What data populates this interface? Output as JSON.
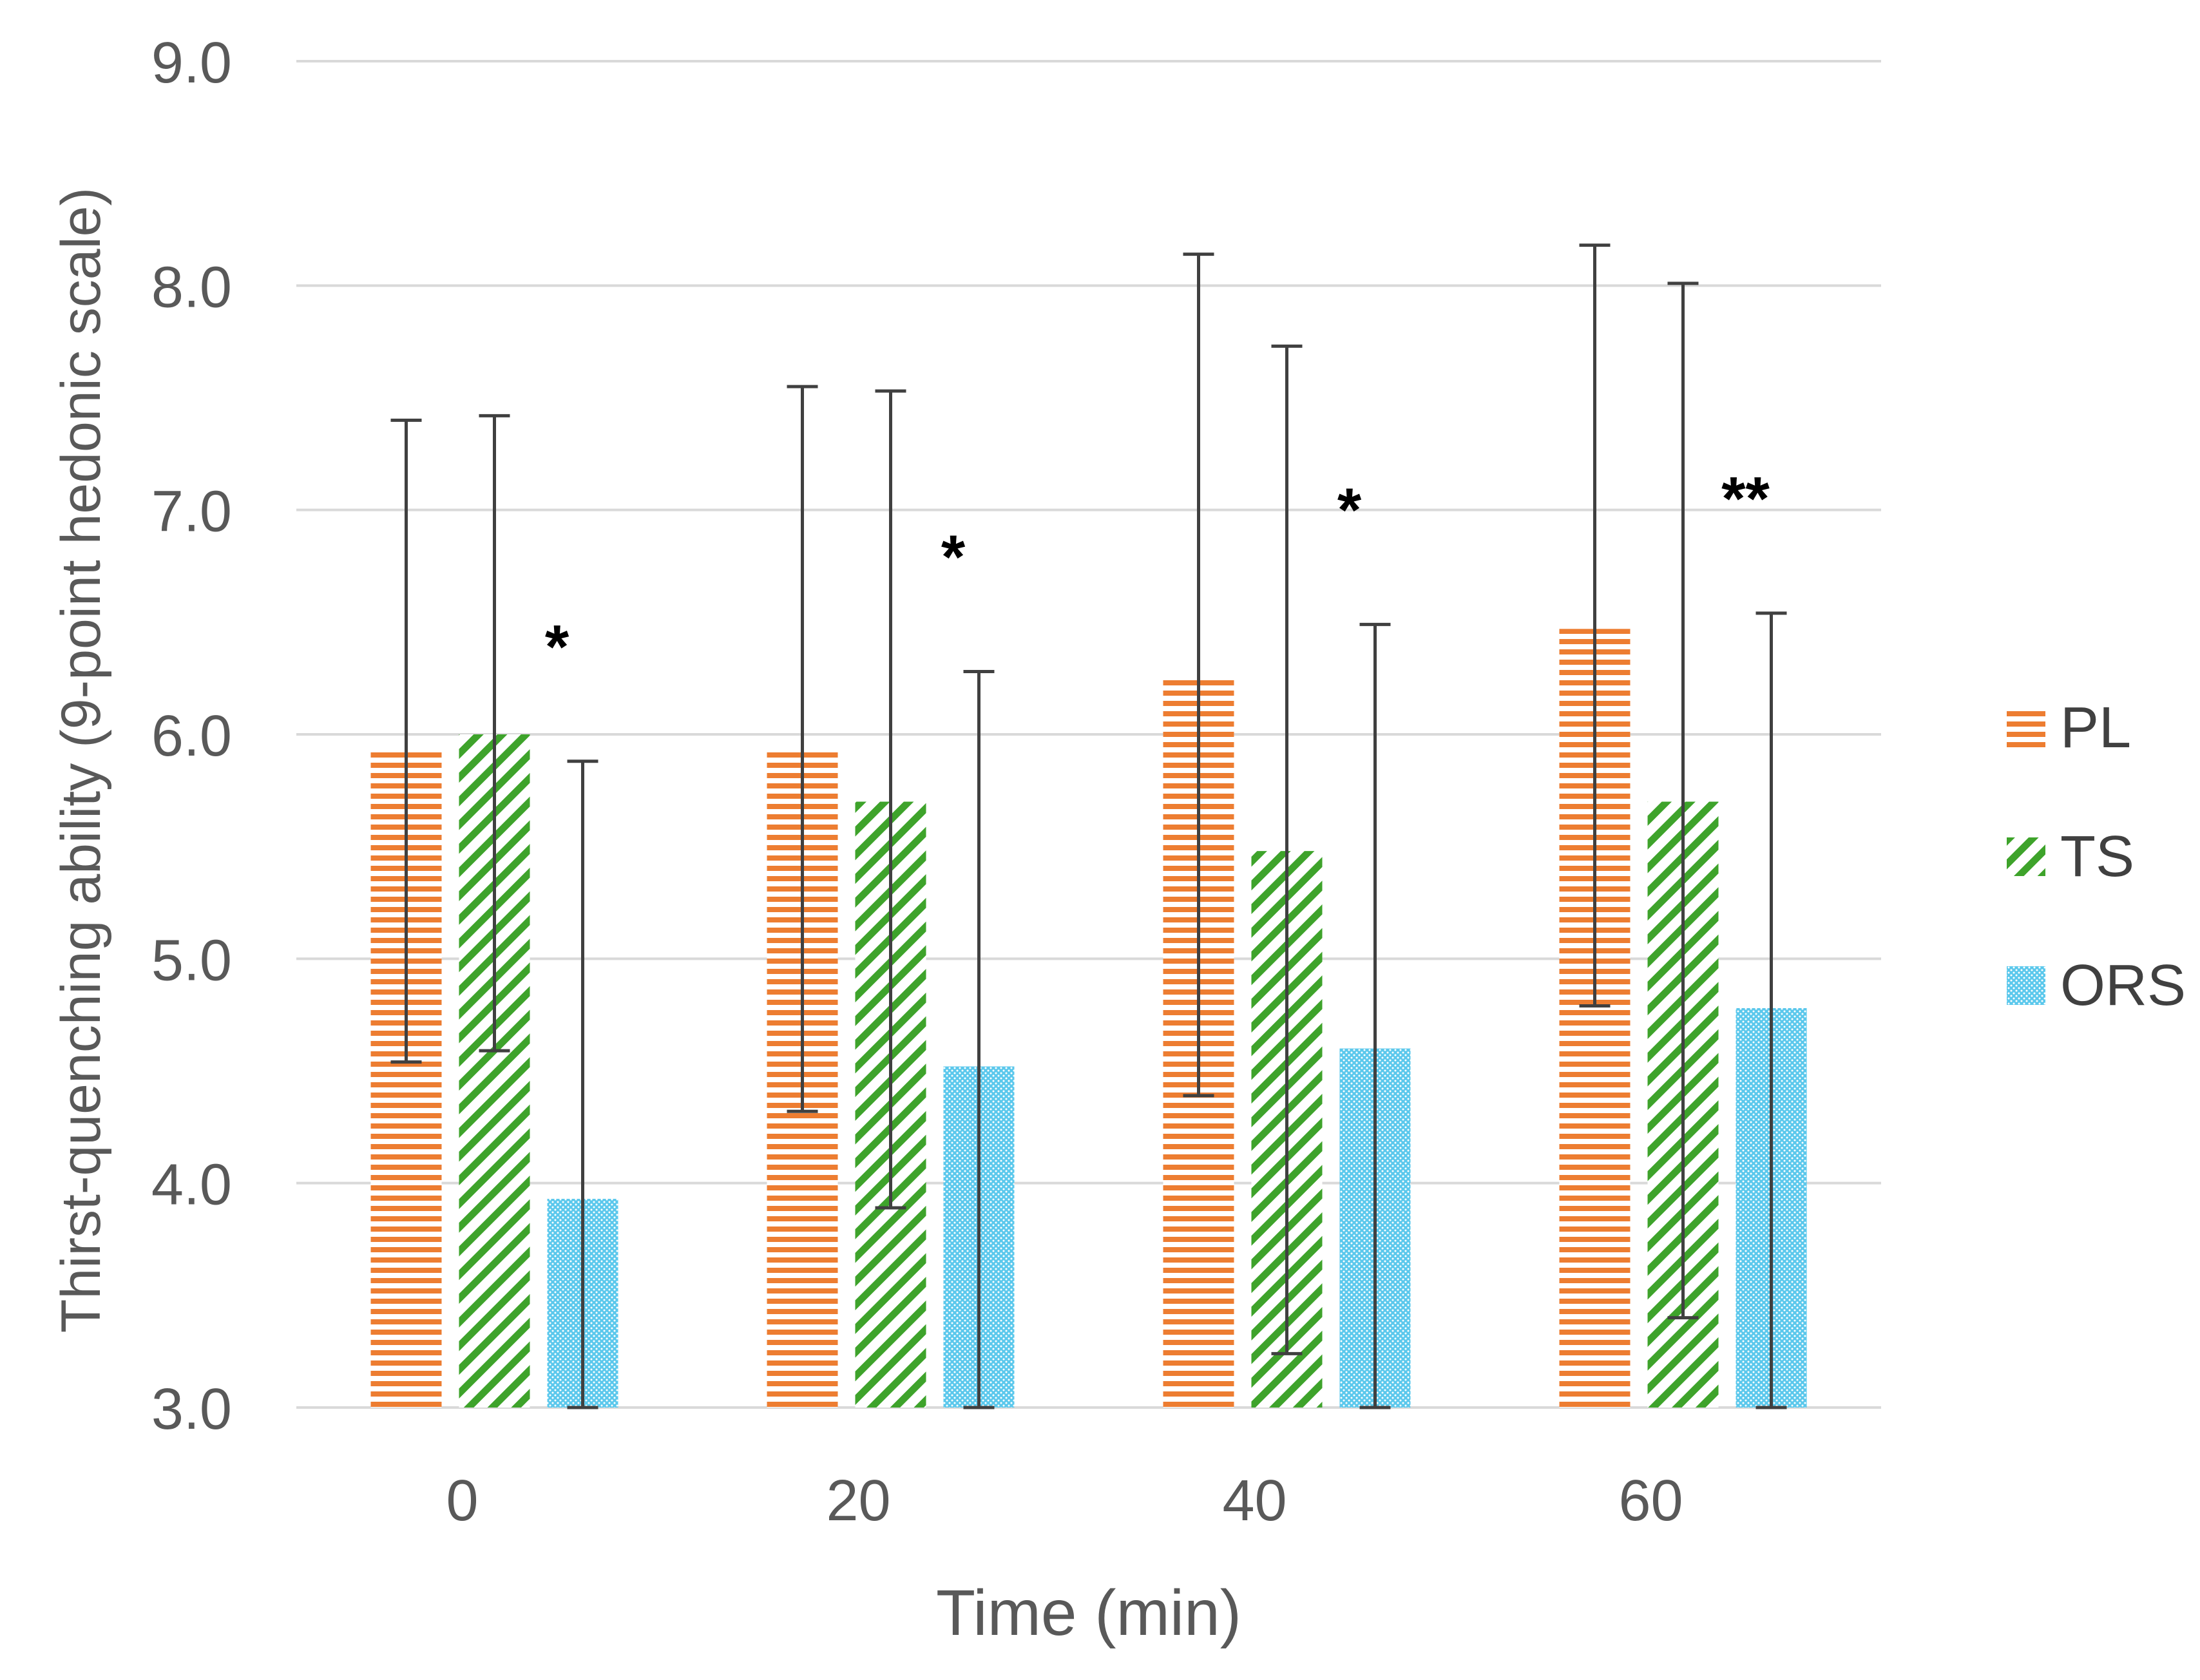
{
  "chart_data": {
    "type": "bar",
    "title": "",
    "xlabel": "Time (min)",
    "ylabel": "Thirst-quenching ability (9-point hedonic scale)",
    "ylim": [
      3.0,
      9.0
    ],
    "yticks": [
      "3.0",
      "4.0",
      "5.0",
      "6.0",
      "7.0",
      "8.0",
      "9.0"
    ],
    "categories": [
      "0",
      "20",
      "40",
      "60"
    ],
    "grid": true,
    "legend_position": "right",
    "series": [
      {
        "name": "PL",
        "color": "#ED7D31",
        "pattern": "horizontal-stripes",
        "values": [
          5.94,
          5.93,
          6.26,
          6.47
        ],
        "err_low": [
          4.54,
          4.32,
          4.39,
          4.79
        ],
        "err_high": [
          7.4,
          7.55,
          8.14,
          8.18
        ]
      },
      {
        "name": "TS",
        "color": "#3EA32B",
        "pattern": "diagonal-stripes",
        "values": [
          6.0,
          5.7,
          5.48,
          5.7
        ],
        "err_low": [
          4.59,
          3.89,
          3.24,
          3.4
        ],
        "err_high": [
          7.42,
          7.53,
          7.73,
          8.01
        ]
      },
      {
        "name": "ORS",
        "color": "#5BC8EC",
        "pattern": "dots",
        "values": [
          3.93,
          4.52,
          4.6,
          4.78
        ],
        "err_low": [
          3.0,
          3.0,
          3.0,
          3.0
        ],
        "err_high": [
          5.88,
          6.28,
          6.49,
          6.54
        ]
      }
    ],
    "annotations": [
      {
        "category": "0",
        "series": "ORS",
        "text": "*"
      },
      {
        "category": "20",
        "series": "ORS",
        "text": "*"
      },
      {
        "category": "40",
        "series": "ORS",
        "text": "*"
      },
      {
        "category": "60",
        "series": "ORS",
        "text": "**"
      }
    ]
  }
}
